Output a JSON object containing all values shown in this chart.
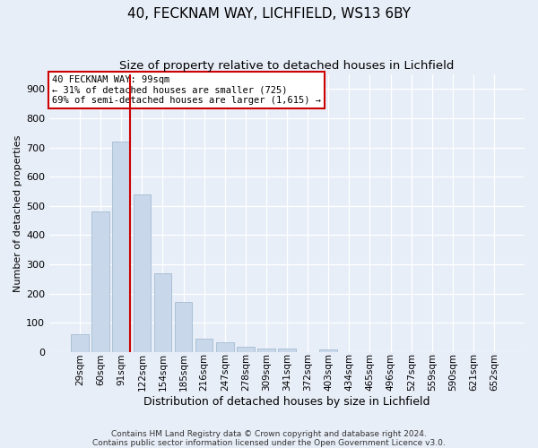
{
  "title1": "40, FECKNAM WAY, LICHFIELD, WS13 6BY",
  "title2": "Size of property relative to detached houses in Lichfield",
  "xlabel": "Distribution of detached houses by size in Lichfield",
  "ylabel": "Number of detached properties",
  "categories": [
    "29sqm",
    "60sqm",
    "91sqm",
    "122sqm",
    "154sqm",
    "185sqm",
    "216sqm",
    "247sqm",
    "278sqm",
    "309sqm",
    "341sqm",
    "372sqm",
    "403sqm",
    "434sqm",
    "465sqm",
    "496sqm",
    "527sqm",
    "559sqm",
    "590sqm",
    "621sqm",
    "652sqm"
  ],
  "values": [
    60,
    480,
    720,
    540,
    270,
    170,
    45,
    33,
    17,
    13,
    13,
    0,
    10,
    0,
    0,
    0,
    0,
    0,
    0,
    0,
    0
  ],
  "bar_color": "#c8d8ea",
  "bar_edge_color": "#9ab4cc",
  "vline_index": 2,
  "vline_color": "#cc0000",
  "annotation_line1": "40 FECKNAM WAY: 99sqm",
  "annotation_line2": "← 31% of detached houses are smaller (725)",
  "annotation_line3": "69% of semi-detached houses are larger (1,615) →",
  "annotation_box_facecolor": "#ffffff",
  "annotation_box_edgecolor": "#cc0000",
  "ylim": [
    0,
    950
  ],
  "yticks": [
    0,
    100,
    200,
    300,
    400,
    500,
    600,
    700,
    800,
    900
  ],
  "background_color": "#e8eef8",
  "grid_color": "#ffffff",
  "title1_fontsize": 11,
  "title2_fontsize": 9.5,
  "xlabel_fontsize": 9,
  "ylabel_fontsize": 8,
  "annotation_fontsize": 7.5,
  "tick_fontsize": 7.5,
  "ytick_fontsize": 8,
  "footer": "Contains HM Land Registry data © Crown copyright and database right 2024.\nContains public sector information licensed under the Open Government Licence v3.0.",
  "footer_fontsize": 6.5
}
